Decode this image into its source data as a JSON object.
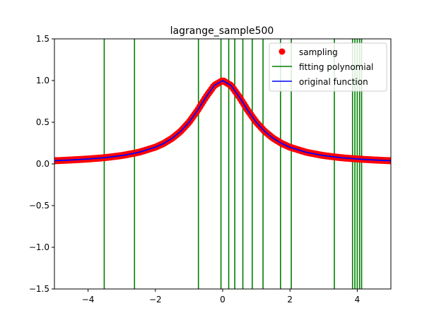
{
  "chart_data": {
    "type": "line",
    "title": "lagrange_sample500",
    "xlabel": "",
    "ylabel": "",
    "xlim": [
      -5,
      5
    ],
    "ylim": [
      -1.5,
      1.5
    ],
    "xticks": [
      -4,
      -2,
      0,
      2,
      4
    ],
    "xtick_labels": [
      "−4",
      "−2",
      "0",
      "2",
      "4"
    ],
    "yticks": [
      -1.5,
      -1.0,
      -0.5,
      0.0,
      0.5,
      1.0,
      1.5
    ],
    "ytick_labels": [
      "−1.5",
      "−1.0",
      "−0.5",
      "0.0",
      "0.5",
      "1.0",
      "1.5"
    ],
    "grid": false,
    "legend": {
      "placement": "top-right",
      "entries": [
        {
          "label": "sampling",
          "marker": "circle",
          "color": "#ff0000"
        },
        {
          "label": "fitting polynomial",
          "marker": "line",
          "color": "#008000"
        },
        {
          "label": "original function",
          "marker": "line",
          "color": "#0000ff"
        }
      ]
    },
    "series": [
      {
        "name": "sampling",
        "kind": "scatter",
        "color": "#ff0000",
        "x": [
          -5.0,
          -4.5,
          -4.0,
          -3.5,
          -3.0,
          -2.5,
          -2.0,
          -1.75,
          -1.5,
          -1.25,
          -1.0,
          -0.75,
          -0.5,
          -0.25,
          0.0,
          0.25,
          0.5,
          0.75,
          1.0,
          1.25,
          1.5,
          1.75,
          2.0,
          2.5,
          3.0,
          3.5,
          4.0,
          4.5,
          5.0
        ],
        "y": [
          0.038,
          0.047,
          0.059,
          0.075,
          0.1,
          0.138,
          0.2,
          0.246,
          0.308,
          0.39,
          0.5,
          0.64,
          0.8,
          0.941,
          1.0,
          0.941,
          0.8,
          0.64,
          0.5,
          0.39,
          0.308,
          0.246,
          0.2,
          0.138,
          0.1,
          0.075,
          0.059,
          0.047,
          0.038
        ]
      },
      {
        "name": "fitting polynomial",
        "kind": "vertical-spikes",
        "color": "#008000",
        "x": [
          -3.52,
          -2.62,
          -0.72,
          -0.05,
          0.18,
          0.36,
          0.6,
          0.88,
          1.2,
          1.72,
          2.04,
          3.32,
          3.86,
          3.93,
          4.0,
          4.07,
          4.13
        ]
      },
      {
        "name": "original function",
        "kind": "line",
        "color": "#0000ff",
        "x": [
          -5.0,
          -4.5,
          -4.0,
          -3.5,
          -3.0,
          -2.5,
          -2.0,
          -1.75,
          -1.5,
          -1.25,
          -1.0,
          -0.75,
          -0.5,
          -0.25,
          0.0,
          0.25,
          0.5,
          0.75,
          1.0,
          1.25,
          1.5,
          1.75,
          2.0,
          2.5,
          3.0,
          3.5,
          4.0,
          4.5,
          5.0
        ],
        "y": [
          0.038,
          0.047,
          0.059,
          0.075,
          0.1,
          0.138,
          0.2,
          0.246,
          0.308,
          0.39,
          0.5,
          0.64,
          0.8,
          0.941,
          1.0,
          0.941,
          0.8,
          0.64,
          0.5,
          0.39,
          0.308,
          0.246,
          0.2,
          0.138,
          0.1,
          0.075,
          0.059,
          0.047,
          0.038
        ]
      }
    ]
  }
}
